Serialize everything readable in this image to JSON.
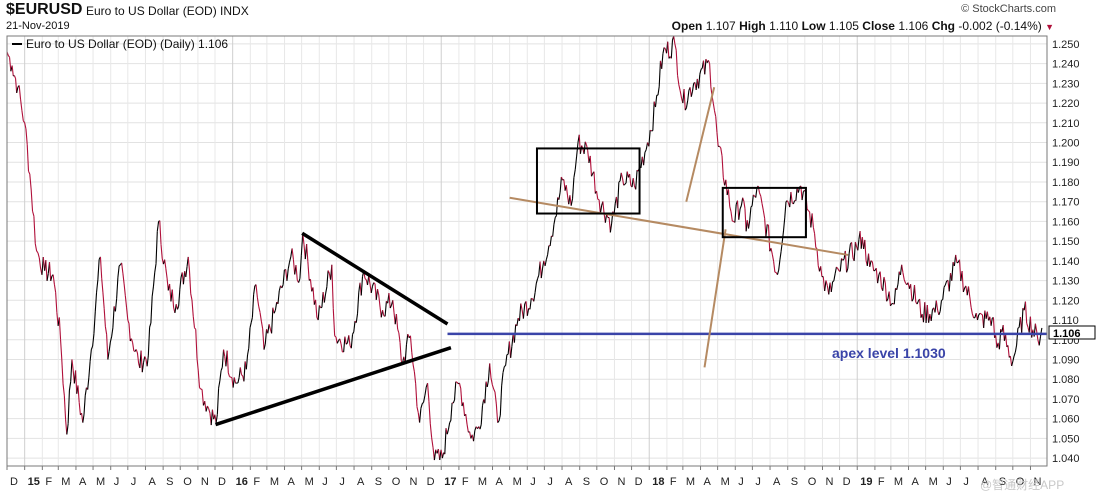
{
  "header": {
    "symbol": "$EURUSD",
    "name": "Euro to US Dollar (EOD)",
    "exchange": "INDX",
    "date": "21-Nov-2019",
    "copyright": "© StockCharts.com",
    "open_label": "Open",
    "open": "1.107",
    "high_label": "High",
    "high": "1.110",
    "low_label": "Low",
    "low": "1.105",
    "close_label": "Close",
    "close": "1.106",
    "chg_label": "Chg",
    "chg": "-0.002 (-0.14%)"
  },
  "legend": {
    "label": "Euro to US Dollar (EOD) (Daily) 1.106"
  },
  "last_price_label": "1.106",
  "watermark": "@智通财经APP",
  "annotation": {
    "text": "apex level 1.1030",
    "value": 1.103
  },
  "colors": {
    "up": "#000000",
    "down": "#b0103a",
    "apex_line": "#3a44a8",
    "trend_tan": "#b58a62",
    "triangle": "#000000"
  },
  "chart_data": {
    "type": "line",
    "title": "",
    "xlabel": "",
    "ylabel": "",
    "x_start": "2014-12-01",
    "x_end": "2019-11-30",
    "ylim": [
      1.036,
      1.254
    ],
    "y_ticks": [
      1.04,
      1.05,
      1.06,
      1.07,
      1.08,
      1.09,
      1.1,
      1.11,
      1.12,
      1.13,
      1.14,
      1.15,
      1.16,
      1.17,
      1.18,
      1.19,
      1.2,
      1.21,
      1.22,
      1.23,
      1.24,
      1.25
    ],
    "y_tick_labels": [
      "1.040",
      "1.050",
      "1.060",
      "1.070",
      "1.080",
      "1.090",
      "1.100",
      "1.110",
      "1.120",
      "1.130",
      "1.140",
      "1.150",
      "1.160",
      "1.170",
      "1.180",
      "1.190",
      "1.200",
      "1.210",
      "1.220",
      "1.230",
      "1.240",
      "1.250"
    ],
    "x_ticks": [
      {
        "date": "2014-12-01",
        "label": "D"
      },
      {
        "date": "2015-01-01",
        "label": "15",
        "bold": true
      },
      {
        "date": "2015-02-01",
        "label": "F"
      },
      {
        "date": "2015-03-01",
        "label": "M"
      },
      {
        "date": "2015-04-01",
        "label": "A"
      },
      {
        "date": "2015-05-01",
        "label": "M"
      },
      {
        "date": "2015-06-01",
        "label": "J"
      },
      {
        "date": "2015-07-01",
        "label": "J"
      },
      {
        "date": "2015-08-01",
        "label": "A"
      },
      {
        "date": "2015-09-01",
        "label": "S"
      },
      {
        "date": "2015-10-01",
        "label": "O"
      },
      {
        "date": "2015-11-01",
        "label": "N"
      },
      {
        "date": "2015-12-01",
        "label": "D"
      },
      {
        "date": "2016-01-01",
        "label": "16",
        "bold": true
      },
      {
        "date": "2016-02-01",
        "label": "F"
      },
      {
        "date": "2016-03-01",
        "label": "M"
      },
      {
        "date": "2016-04-01",
        "label": "A"
      },
      {
        "date": "2016-05-01",
        "label": "M"
      },
      {
        "date": "2016-06-01",
        "label": "J"
      },
      {
        "date": "2016-07-01",
        "label": "J"
      },
      {
        "date": "2016-08-01",
        "label": "A"
      },
      {
        "date": "2016-09-01",
        "label": "S"
      },
      {
        "date": "2016-10-01",
        "label": "O"
      },
      {
        "date": "2016-11-01",
        "label": "N"
      },
      {
        "date": "2016-12-01",
        "label": "D"
      },
      {
        "date": "2017-01-01",
        "label": "17",
        "bold": true
      },
      {
        "date": "2017-02-01",
        "label": "F"
      },
      {
        "date": "2017-03-01",
        "label": "M"
      },
      {
        "date": "2017-04-01",
        "label": "A"
      },
      {
        "date": "2017-05-01",
        "label": "M"
      },
      {
        "date": "2017-06-01",
        "label": "J"
      },
      {
        "date": "2017-07-01",
        "label": "J"
      },
      {
        "date": "2017-08-01",
        "label": "A"
      },
      {
        "date": "2017-09-01",
        "label": "S"
      },
      {
        "date": "2017-10-01",
        "label": "O"
      },
      {
        "date": "2017-11-01",
        "label": "N"
      },
      {
        "date": "2017-12-01",
        "label": "D"
      },
      {
        "date": "2018-01-01",
        "label": "18",
        "bold": true
      },
      {
        "date": "2018-02-01",
        "label": "F"
      },
      {
        "date": "2018-03-01",
        "label": "M"
      },
      {
        "date": "2018-04-01",
        "label": "A"
      },
      {
        "date": "2018-05-01",
        "label": "M"
      },
      {
        "date": "2018-06-01",
        "label": "J"
      },
      {
        "date": "2018-07-01",
        "label": "J"
      },
      {
        "date": "2018-08-01",
        "label": "A"
      },
      {
        "date": "2018-09-01",
        "label": "S"
      },
      {
        "date": "2018-10-01",
        "label": "O"
      },
      {
        "date": "2018-11-01",
        "label": "N"
      },
      {
        "date": "2018-12-01",
        "label": "D"
      },
      {
        "date": "2019-01-01",
        "label": "19",
        "bold": true
      },
      {
        "date": "2019-02-01",
        "label": "F"
      },
      {
        "date": "2019-03-01",
        "label": "M"
      },
      {
        "date": "2019-04-01",
        "label": "A"
      },
      {
        "date": "2019-05-01",
        "label": "M"
      },
      {
        "date": "2019-06-01",
        "label": "J"
      },
      {
        "date": "2019-07-01",
        "label": "J"
      },
      {
        "date": "2019-08-01",
        "label": "A"
      },
      {
        "date": "2019-09-01",
        "label": "S"
      },
      {
        "date": "2019-10-01",
        "label": "O"
      },
      {
        "date": "2019-11-01",
        "label": "N"
      }
    ],
    "grid": true,
    "legend_position": "top-left",
    "series": [
      {
        "points": [
          [
            "2014-12-01",
            1.246
          ],
          [
            "2014-12-10",
            1.239
          ],
          [
            "2014-12-20",
            1.228
          ],
          [
            "2015-01-01",
            1.21
          ],
          [
            "2015-01-10",
            1.184
          ],
          [
            "2015-01-22",
            1.145
          ],
          [
            "2015-02-05",
            1.135
          ],
          [
            "2015-02-20",
            1.133
          ],
          [
            "2015-03-05",
            1.1
          ],
          [
            "2015-03-16",
            1.052
          ],
          [
            "2015-03-25",
            1.09
          ],
          [
            "2015-04-13",
            1.058
          ],
          [
            "2015-04-28",
            1.095
          ],
          [
            "2015-05-14",
            1.142
          ],
          [
            "2015-05-27",
            1.09
          ],
          [
            "2015-06-18",
            1.138
          ],
          [
            "2015-07-01",
            1.11
          ],
          [
            "2015-07-20",
            1.088
          ],
          [
            "2015-08-06",
            1.092
          ],
          [
            "2015-08-24",
            1.16
          ],
          [
            "2015-09-10",
            1.125
          ],
          [
            "2015-09-24",
            1.118
          ],
          [
            "2015-10-15",
            1.142
          ],
          [
            "2015-11-06",
            1.075
          ],
          [
            "2015-11-20",
            1.065
          ],
          [
            "2015-12-03",
            1.058
          ],
          [
            "2015-12-16",
            1.095
          ],
          [
            "2016-01-06",
            1.078
          ],
          [
            "2016-01-25",
            1.085
          ],
          [
            "2016-02-11",
            1.128
          ],
          [
            "2016-02-25",
            1.095
          ],
          [
            "2016-03-16",
            1.115
          ],
          [
            "2016-04-12",
            1.142
          ],
          [
            "2016-04-28",
            1.131
          ],
          [
            "2016-05-03",
            1.154
          ],
          [
            "2016-05-30",
            1.11
          ],
          [
            "2016-06-23",
            1.138
          ],
          [
            "2016-06-28",
            1.102
          ],
          [
            "2016-07-25",
            1.097
          ],
          [
            "2016-08-18",
            1.135
          ],
          [
            "2016-09-20",
            1.115
          ],
          [
            "2016-10-08",
            1.12
          ],
          [
            "2016-10-25",
            1.088
          ],
          [
            "2016-11-08",
            1.102
          ],
          [
            "2016-11-24",
            1.058
          ],
          [
            "2016-12-08",
            1.078
          ],
          [
            "2016-12-20",
            1.039
          ],
          [
            "2017-01-03",
            1.04
          ],
          [
            "2017-01-20",
            1.068
          ],
          [
            "2017-02-02",
            1.078
          ],
          [
            "2017-02-22",
            1.05
          ],
          [
            "2017-03-08",
            1.056
          ],
          [
            "2017-03-27",
            1.088
          ],
          [
            "2017-04-10",
            1.058
          ],
          [
            "2017-04-24",
            1.087
          ],
          [
            "2017-05-16",
            1.111
          ],
          [
            "2017-06-08",
            1.121
          ],
          [
            "2017-06-30",
            1.14
          ],
          [
            "2017-07-20",
            1.162
          ],
          [
            "2017-08-02",
            1.181
          ],
          [
            "2017-08-17",
            1.168
          ],
          [
            "2017-08-29",
            1.2
          ],
          [
            "2017-09-15",
            1.196
          ],
          [
            "2017-10-05",
            1.171
          ],
          [
            "2017-10-27",
            1.159
          ],
          [
            "2017-11-15",
            1.182
          ],
          [
            "2017-12-06",
            1.178
          ],
          [
            "2017-12-29",
            1.2
          ],
          [
            "2018-01-12",
            1.218
          ],
          [
            "2018-01-25",
            1.245
          ],
          [
            "2018-02-15",
            1.25
          ],
          [
            "2018-03-01",
            1.22
          ],
          [
            "2018-03-20",
            1.23
          ],
          [
            "2018-04-17",
            1.24
          ],
          [
            "2018-05-02",
            1.198
          ],
          [
            "2018-05-29",
            1.16
          ],
          [
            "2018-06-14",
            1.172
          ],
          [
            "2018-06-20",
            1.155
          ],
          [
            "2018-07-09",
            1.177
          ],
          [
            "2018-08-14",
            1.133
          ],
          [
            "2018-08-29",
            1.17
          ],
          [
            "2018-09-24",
            1.178
          ],
          [
            "2018-10-16",
            1.157
          ],
          [
            "2018-10-31",
            1.132
          ],
          [
            "2018-11-12",
            1.123
          ],
          [
            "2018-11-30",
            1.135
          ],
          [
            "2018-12-31",
            1.147
          ],
          [
            "2019-01-10",
            1.152
          ],
          [
            "2019-01-23",
            1.137
          ],
          [
            "2019-02-08",
            1.133
          ],
          [
            "2019-03-07",
            1.118
          ],
          [
            "2019-03-20",
            1.138
          ],
          [
            "2019-04-25",
            1.113
          ],
          [
            "2019-05-22",
            1.115
          ],
          [
            "2019-06-25",
            1.139
          ],
          [
            "2019-07-31",
            1.11
          ],
          [
            "2019-08-26",
            1.111
          ],
          [
            "2019-09-03",
            1.096
          ],
          [
            "2019-09-12",
            1.104
          ],
          [
            "2019-10-01",
            1.089
          ],
          [
            "2019-10-21",
            1.115
          ],
          [
            "2019-11-14",
            1.1
          ],
          [
            "2019-11-21",
            1.106
          ]
        ]
      }
    ],
    "overlays": [
      {
        "kind": "triangle-upper",
        "from": [
          "2016-05-02",
          1.154
        ],
        "to": [
          "2017-01-12",
          1.108
        ]
      },
      {
        "kind": "triangle-lower",
        "from": [
          "2015-12-02",
          1.057
        ],
        "to": [
          "2017-01-18",
          1.096
        ]
      },
      {
        "kind": "apex-line",
        "from": [
          "2017-01-12",
          1.103
        ],
        "to": [
          "2019-11-30",
          1.103
        ]
      },
      {
        "kind": "trend-tan",
        "from": [
          "2017-05-01",
          1.172
        ],
        "to": [
          "2018-12-16",
          1.143
        ]
      },
      {
        "kind": "trend-tan",
        "from": [
          "2018-03-07",
          1.17
        ],
        "to": [
          "2018-04-25",
          1.228
        ]
      },
      {
        "kind": "trend-tan",
        "from": [
          "2018-04-08",
          1.086
        ],
        "to": [
          "2018-05-15",
          1.156
        ]
      },
      {
        "kind": "box",
        "from": [
          "2017-06-18",
          1.197
        ],
        "to": [
          "2017-12-15",
          1.164
        ]
      },
      {
        "kind": "box",
        "from": [
          "2018-05-10",
          1.177
        ],
        "to": [
          "2018-10-03",
          1.152
        ]
      }
    ]
  }
}
